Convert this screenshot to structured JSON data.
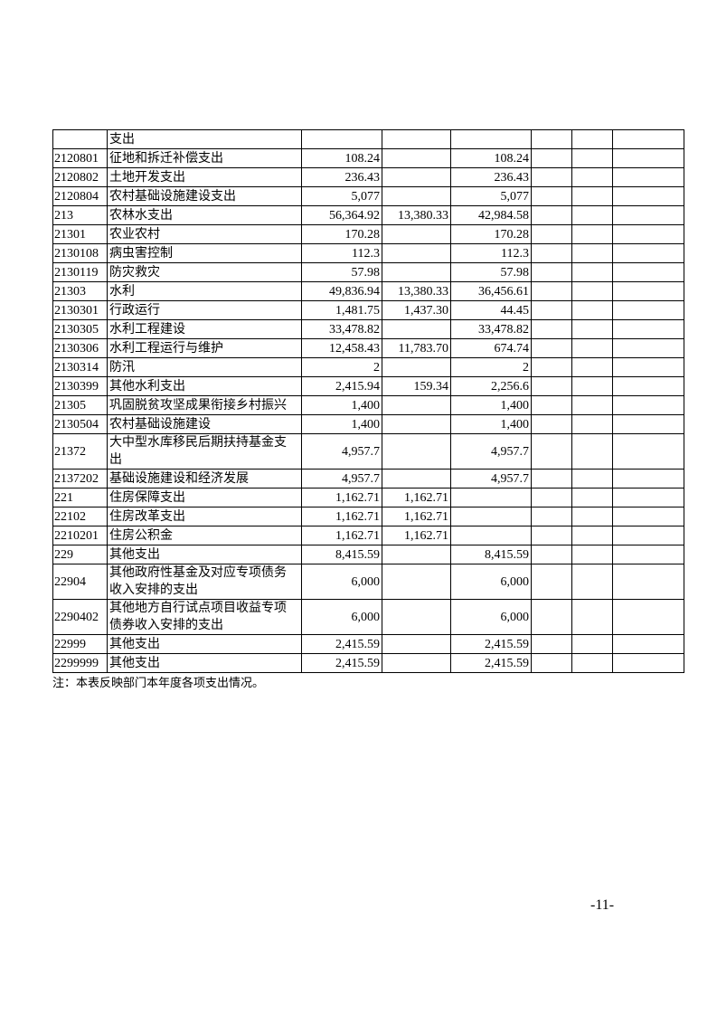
{
  "table": {
    "rows": [
      [
        null,
        "支出",
        null,
        null,
        null,
        null,
        null,
        null
      ],
      [
        "2120801",
        "征地和拆迁补偿支出",
        "108.24",
        null,
        "108.24",
        null,
        null,
        null
      ],
      [
        "2120802",
        "土地开发支出",
        "236.43",
        null,
        "236.43",
        null,
        null,
        null
      ],
      [
        "2120804",
        "农村基础设施建设支出",
        "5,077",
        null,
        "5,077",
        null,
        null,
        null
      ],
      [
        "213",
        "农林水支出",
        "56,364.92",
        "13,380.33",
        "42,984.58",
        null,
        null,
        null
      ],
      [
        "21301",
        "农业农村",
        "170.28",
        null,
        "170.28",
        null,
        null,
        null
      ],
      [
        "2130108",
        "病虫害控制",
        "112.3",
        null,
        "112.3",
        null,
        null,
        null
      ],
      [
        "2130119",
        "防灾救灾",
        "57.98",
        null,
        "57.98",
        null,
        null,
        null
      ],
      [
        "21303",
        "水利",
        "49,836.94",
        "13,380.33",
        "36,456.61",
        null,
        null,
        null
      ],
      [
        "2130301",
        "行政运行",
        "1,481.75",
        "1,437.30",
        "44.45",
        null,
        null,
        null
      ],
      [
        "2130305",
        "水利工程建设",
        "33,478.82",
        null,
        "33,478.82",
        null,
        null,
        null
      ],
      [
        "2130306",
        "水利工程运行与维护",
        "12,458.43",
        "11,783.70",
        "674.74",
        null,
        null,
        null
      ],
      [
        "2130314",
        "防汛",
        "2",
        null,
        "2",
        null,
        null,
        null
      ],
      [
        "2130399",
        "其他水利支出",
        "2,415.94",
        "159.34",
        "2,256.6",
        null,
        null,
        null
      ],
      [
        "21305",
        "巩固脱贫攻坚成果衔接乡村振兴",
        "1,400",
        null,
        "1,400",
        null,
        null,
        null
      ],
      [
        "2130504",
        "农村基础设施建设",
        "1,400",
        null,
        "1,400",
        null,
        null,
        null
      ],
      [
        "21372",
        "大中型水库移民后期扶持基金支出",
        "4,957.7",
        null,
        "4,957.7",
        null,
        null,
        null
      ],
      [
        "2137202",
        "基础设施建设和经济发展",
        "4,957.7",
        null,
        "4,957.7",
        null,
        null,
        null
      ],
      [
        "221",
        "住房保障支出",
        "1,162.71",
        "1,162.71",
        null,
        null,
        null,
        null
      ],
      [
        "22102",
        "住房改革支出",
        "1,162.71",
        "1,162.71",
        null,
        null,
        null,
        null
      ],
      [
        "2210201",
        "住房公积金",
        "1,162.71",
        "1,162.71",
        null,
        null,
        null,
        null
      ],
      [
        "229",
        "其他支出",
        "8,415.59",
        null,
        "8,415.59",
        null,
        null,
        null
      ],
      [
        "22904",
        "其他政府性基金及对应专项债务收入安排的支出",
        "6,000",
        null,
        "6,000",
        null,
        null,
        null
      ],
      [
        "2290402",
        "其他地方自行试点项目收益专项债券收入安排的支出",
        "6,000",
        null,
        "6,000",
        null,
        null,
        null
      ],
      [
        "22999",
        "其他支出",
        "2,415.59",
        null,
        "2,415.59",
        null,
        null,
        null
      ],
      [
        "2299999",
        "其他支出",
        "2,415.59",
        null,
        "2,415.59",
        null,
        null,
        null
      ]
    ]
  },
  "note": "注：本表反映部门本年度各项支出情况。",
  "page_number": "-11-"
}
